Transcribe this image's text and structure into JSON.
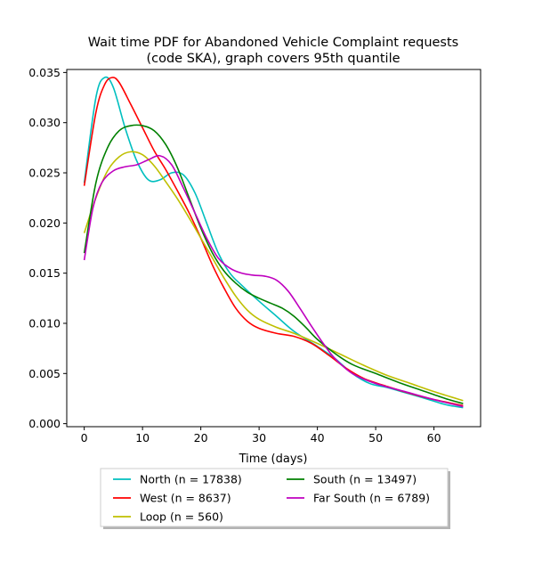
{
  "chart_data": {
    "type": "line",
    "title_line1": "Wait time PDF for Abandoned Vehicle Complaint  requests",
    "title_line2": "(code SKA), graph covers 95th quantile",
    "xlabel": "Time (days)",
    "ylabel": "",
    "xlim": [
      -3,
      68
    ],
    "ylim": [
      -0.0003,
      0.0353
    ],
    "x_ticks": [
      0,
      10,
      20,
      30,
      40,
      50,
      60
    ],
    "x_tick_labels": [
      "0",
      "10",
      "20",
      "30",
      "40",
      "50",
      "60"
    ],
    "y_ticks": [
      0.0,
      0.005,
      0.01,
      0.015,
      0.02,
      0.025,
      0.03,
      0.035
    ],
    "y_tick_labels": [
      "0.000",
      "0.005",
      "0.010",
      "0.015",
      "0.020",
      "0.025",
      "0.030",
      "0.035"
    ],
    "grid": false,
    "legend_placement": "below plot, two columns, shadowed box",
    "series": [
      {
        "name": "North (n = 17838)",
        "color": "#00bfbf",
        "points": [
          [
            0,
            0.024
          ],
          [
            2,
            0.0325
          ],
          [
            3.5,
            0.0345
          ],
          [
            5,
            0.0335
          ],
          [
            7,
            0.0295
          ],
          [
            9,
            0.0262
          ],
          [
            11,
            0.0243
          ],
          [
            13,
            0.0243
          ],
          [
            15,
            0.025
          ],
          [
            17,
            0.0248
          ],
          [
            19,
            0.023
          ],
          [
            21,
            0.02
          ],
          [
            23,
            0.017
          ],
          [
            25,
            0.015
          ],
          [
            27,
            0.0138
          ],
          [
            30,
            0.0122
          ],
          [
            33,
            0.0107
          ],
          [
            36,
            0.0092
          ],
          [
            40,
            0.0077
          ],
          [
            43,
            0.0065
          ],
          [
            46,
            0.005
          ],
          [
            49,
            0.004
          ],
          [
            52,
            0.0036
          ],
          [
            55,
            0.0031
          ],
          [
            58,
            0.0026
          ],
          [
            62,
            0.0019
          ],
          [
            65,
            0.0016
          ]
        ]
      },
      {
        "name": "West (n = 8637)",
        "color": "#ff0000",
        "points": [
          [
            0,
            0.0237
          ],
          [
            2,
            0.031
          ],
          [
            3.5,
            0.0338
          ],
          [
            4.8,
            0.0345
          ],
          [
            6,
            0.034
          ],
          [
            8,
            0.0318
          ],
          [
            10,
            0.0295
          ],
          [
            12,
            0.0272
          ],
          [
            14,
            0.0253
          ],
          [
            16,
            0.0232
          ],
          [
            18,
            0.021
          ],
          [
            20,
            0.0185
          ],
          [
            22,
            0.0158
          ],
          [
            24,
            0.0135
          ],
          [
            26,
            0.0115
          ],
          [
            28,
            0.0102
          ],
          [
            30,
            0.0095
          ],
          [
            33,
            0.009
          ],
          [
            36,
            0.0087
          ],
          [
            39,
            0.008
          ],
          [
            42,
            0.0068
          ],
          [
            45,
            0.0055
          ],
          [
            48,
            0.0045
          ],
          [
            52,
            0.0037
          ],
          [
            56,
            0.003
          ],
          [
            60,
            0.0024
          ],
          [
            65,
            0.0018
          ]
        ]
      },
      {
        "name": "Loop (n = 560)",
        "color": "#bfbf00",
        "points": [
          [
            0,
            0.019
          ],
          [
            2,
            0.0225
          ],
          [
            4,
            0.0252
          ],
          [
            6,
            0.0266
          ],
          [
            8,
            0.0271
          ],
          [
            10,
            0.0268
          ],
          [
            12,
            0.0257
          ],
          [
            14,
            0.0241
          ],
          [
            16,
            0.0224
          ],
          [
            18,
            0.0205
          ],
          [
            20,
            0.0185
          ],
          [
            22,
            0.0165
          ],
          [
            24,
            0.0145
          ],
          [
            26,
            0.0127
          ],
          [
            28,
            0.0113
          ],
          [
            30,
            0.0104
          ],
          [
            33,
            0.0096
          ],
          [
            36,
            0.009
          ],
          [
            40,
            0.008
          ],
          [
            44,
            0.0069
          ],
          [
            48,
            0.0058
          ],
          [
            52,
            0.0048
          ],
          [
            56,
            0.004
          ],
          [
            60,
            0.0032
          ],
          [
            65,
            0.0023
          ]
        ]
      },
      {
        "name": "South (n = 13497)",
        "color": "#008000",
        "points": [
          [
            0,
            0.017
          ],
          [
            2,
            0.024
          ],
          [
            4,
            0.0275
          ],
          [
            6,
            0.0292
          ],
          [
            8,
            0.0297
          ],
          [
            10,
            0.0297
          ],
          [
            12,
            0.0292
          ],
          [
            14,
            0.0278
          ],
          [
            16,
            0.0255
          ],
          [
            18,
            0.0225
          ],
          [
            20,
            0.0195
          ],
          [
            22,
            0.017
          ],
          [
            24,
            0.0152
          ],
          [
            26,
            0.014
          ],
          [
            28,
            0.0131
          ],
          [
            30,
            0.0125
          ],
          [
            32,
            0.012
          ],
          [
            34,
            0.0115
          ],
          [
            36,
            0.0107
          ],
          [
            38,
            0.0096
          ],
          [
            40,
            0.0084
          ],
          [
            43,
            0.007
          ],
          [
            46,
            0.0059
          ],
          [
            50,
            0.005
          ],
          [
            54,
            0.0041
          ],
          [
            58,
            0.0033
          ],
          [
            62,
            0.0025
          ],
          [
            65,
            0.002
          ]
        ]
      },
      {
        "name": "Far South (n = 6789)",
        "color": "#bf00bf",
        "points": [
          [
            0,
            0.0163
          ],
          [
            1.5,
            0.0215
          ],
          [
            3,
            0.024
          ],
          [
            5,
            0.0252
          ],
          [
            7,
            0.0256
          ],
          [
            9,
            0.0258
          ],
          [
            11,
            0.0263
          ],
          [
            13,
            0.0267
          ],
          [
            15,
            0.0258
          ],
          [
            17,
            0.0235
          ],
          [
            19,
            0.021
          ],
          [
            21,
            0.0185
          ],
          [
            23,
            0.0165
          ],
          [
            25,
            0.0155
          ],
          [
            27,
            0.015
          ],
          [
            29,
            0.0148
          ],
          [
            31,
            0.0147
          ],
          [
            33,
            0.0143
          ],
          [
            35,
            0.0132
          ],
          [
            37,
            0.0115
          ],
          [
            39,
            0.0097
          ],
          [
            41,
            0.008
          ],
          [
            43,
            0.0065
          ],
          [
            46,
            0.005
          ],
          [
            50,
            0.004
          ],
          [
            55,
            0.0032
          ],
          [
            60,
            0.0024
          ],
          [
            65,
            0.0017
          ]
        ]
      }
    ]
  }
}
